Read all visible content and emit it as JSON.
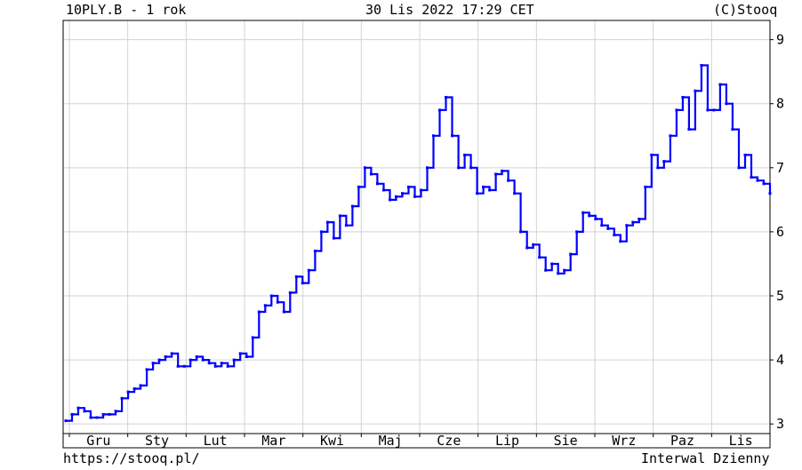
{
  "header": {
    "symbol_title": "10PLY.B - 1 rok",
    "timestamp": "30 Lis 2022 17:29 CET",
    "copyright": "(C)Stooq"
  },
  "footer": {
    "url": "https://stooq.pl/",
    "interval": "Interwal Dzienny"
  },
  "colors": {
    "line": "#0000ff",
    "grid": "#d3d3d3",
    "background": "#ffffff"
  },
  "chart_data": {
    "type": "line",
    "x_ticks": [
      "Gru",
      "Sty",
      "Lut",
      "Mar",
      "Kwi",
      "Maj",
      "Cze",
      "Lip",
      "Sie",
      "Wrz",
      "Paz",
      "Lis"
    ],
    "y_ticks": [
      3,
      4,
      5,
      6,
      7,
      8,
      9
    ],
    "ylim": [
      2.85,
      9.3
    ],
    "y_axis_side": "right",
    "grid": true,
    "series": [
      {
        "values": [
          3.05,
          3.15,
          3.25,
          3.2,
          3.1,
          3.1,
          3.15,
          3.15,
          3.2,
          3.4,
          3.5,
          3.55,
          3.6,
          3.85,
          3.95,
          4.0,
          4.05,
          4.1,
          3.9,
          3.9,
          4.0,
          4.05,
          4.0,
          3.95,
          3.9,
          3.95,
          3.9,
          4.0,
          4.1,
          4.05,
          4.35,
          4.75,
          4.85,
          5.0,
          4.9,
          4.75,
          5.05,
          5.3,
          5.2,
          5.4,
          5.7,
          6.0,
          6.15,
          5.9,
          6.25,
          6.1,
          6.4,
          6.7,
          7.0,
          6.9,
          6.75,
          6.65,
          6.5,
          6.55,
          6.6,
          6.7,
          6.55,
          6.65,
          7.0,
          7.5,
          7.9,
          8.1,
          7.5,
          7.0,
          7.2,
          7.0,
          6.6,
          6.7,
          6.65,
          6.9,
          6.95,
          6.8,
          6.6,
          6.0,
          5.75,
          5.8,
          5.6,
          5.4,
          5.5,
          5.35,
          5.4,
          5.65,
          6.0,
          6.3,
          6.25,
          6.2,
          6.1,
          6.05,
          5.95,
          5.85,
          6.1,
          6.15,
          6.2,
          6.7,
          7.2,
          7.0,
          7.1,
          7.5,
          7.9,
          8.1,
          7.6,
          8.2,
          8.6,
          7.9,
          7.9,
          8.3,
          8.0,
          7.6,
          7.0,
          7.2,
          6.85,
          6.8,
          6.75,
          6.6
        ]
      }
    ]
  }
}
